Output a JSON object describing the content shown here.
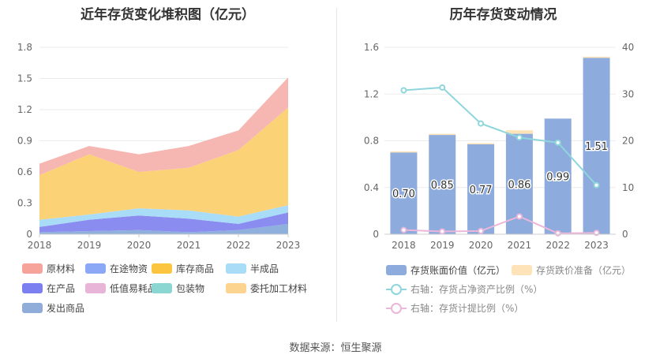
{
  "source": "数据来源：恒生聚源",
  "chart_data": [
    {
      "type": "area",
      "stacked": true,
      "title": "近年存货变化堆积图（亿元）",
      "categories": [
        "2018",
        "2019",
        "2020",
        "2021",
        "2022",
        "2023"
      ],
      "ylim": [
        0,
        1.8
      ],
      "yticks": [
        "0",
        "0.3",
        "0.6",
        "0.9",
        "1.2",
        "1.5",
        "1.8"
      ],
      "grid": true,
      "legend_position": "bottom",
      "series": [
        {
          "name": "发出商品",
          "color": "#8fb0dc",
          "values": [
            0.02,
            0.03,
            0.04,
            0.02,
            0.04,
            0.1
          ]
        },
        {
          "name": "在产品",
          "color": "#8b8cf0",
          "values": [
            0.05,
            0.11,
            0.14,
            0.13,
            0.06,
            0.11
          ]
        },
        {
          "name": "半成品",
          "color": "#a8dcf7",
          "values": [
            0.07,
            0.05,
            0.07,
            0.08,
            0.07,
            0.07
          ]
        },
        {
          "name": "库存商品",
          "color": "#fcd277",
          "values": [
            0.43,
            0.58,
            0.35,
            0.41,
            0.64,
            0.94
          ]
        },
        {
          "name": "原材料",
          "color": "#f6b7b2",
          "values": [
            0.11,
            0.08,
            0.17,
            0.21,
            0.19,
            0.29
          ]
        }
      ],
      "legend": [
        {
          "name": "原材料",
          "color": "#f6a49b"
        },
        {
          "name": "在途物资",
          "color": "#8aa8f5"
        },
        {
          "name": "库存商品",
          "color": "#fbc53f"
        },
        {
          "name": "半成品",
          "color": "#a8dcf7"
        },
        {
          "name": "在产品",
          "color": "#7b7ff0"
        },
        {
          "name": "低值易耗品",
          "color": "#e8b5d8"
        },
        {
          "name": "包装物",
          "color": "#8ad6d2"
        },
        {
          "name": "委托加工材料",
          "color": "#fcd48f"
        },
        {
          "name": "发出商品",
          "color": "#8fadd8"
        }
      ]
    },
    {
      "type": "bar",
      "title": "历年存货变动情况",
      "categories": [
        "2018",
        "2019",
        "2020",
        "2021",
        "2022",
        "2023"
      ],
      "ylim": [
        0,
        1.6
      ],
      "yticks": [
        "0",
        "0.4",
        "0.8",
        "1.2",
        "1.6"
      ],
      "y2lim": [
        0,
        40
      ],
      "y2ticks": [
        "0",
        "10",
        "20",
        "30",
        "40"
      ],
      "grid": true,
      "legend_position": "bottom",
      "series": [
        {
          "name": "存货账面价值（亿元）",
          "type": "bar",
          "axis": "left",
          "color": "#8dabdc",
          "values": [
            0.7,
            0.85,
            0.77,
            0.86,
            0.99,
            1.51
          ],
          "labels": [
            "0.70",
            "0.85",
            "0.77",
            "0.86",
            "0.99",
            "1.51"
          ]
        },
        {
          "name": "存货跌价准备（亿元）",
          "type": "bar",
          "axis": "left",
          "color": "#fde3b7",
          "values": [
            0.01,
            0.01,
            0.01,
            0.03,
            0.0,
            0.01
          ]
        },
        {
          "name": "右轴：存货占净资产比例（%）",
          "type": "line",
          "axis": "right",
          "color": "#8fd6dc",
          "values": [
            30.8,
            31.4,
            23.7,
            20.7,
            19.6,
            10.5
          ]
        },
        {
          "name": "右轴：存货计提比例（%）",
          "type": "line",
          "axis": "right",
          "color": "#eab6da",
          "values": [
            0.9,
            0.6,
            0.7,
            3.8,
            0.2,
            0.3
          ]
        }
      ]
    }
  ]
}
